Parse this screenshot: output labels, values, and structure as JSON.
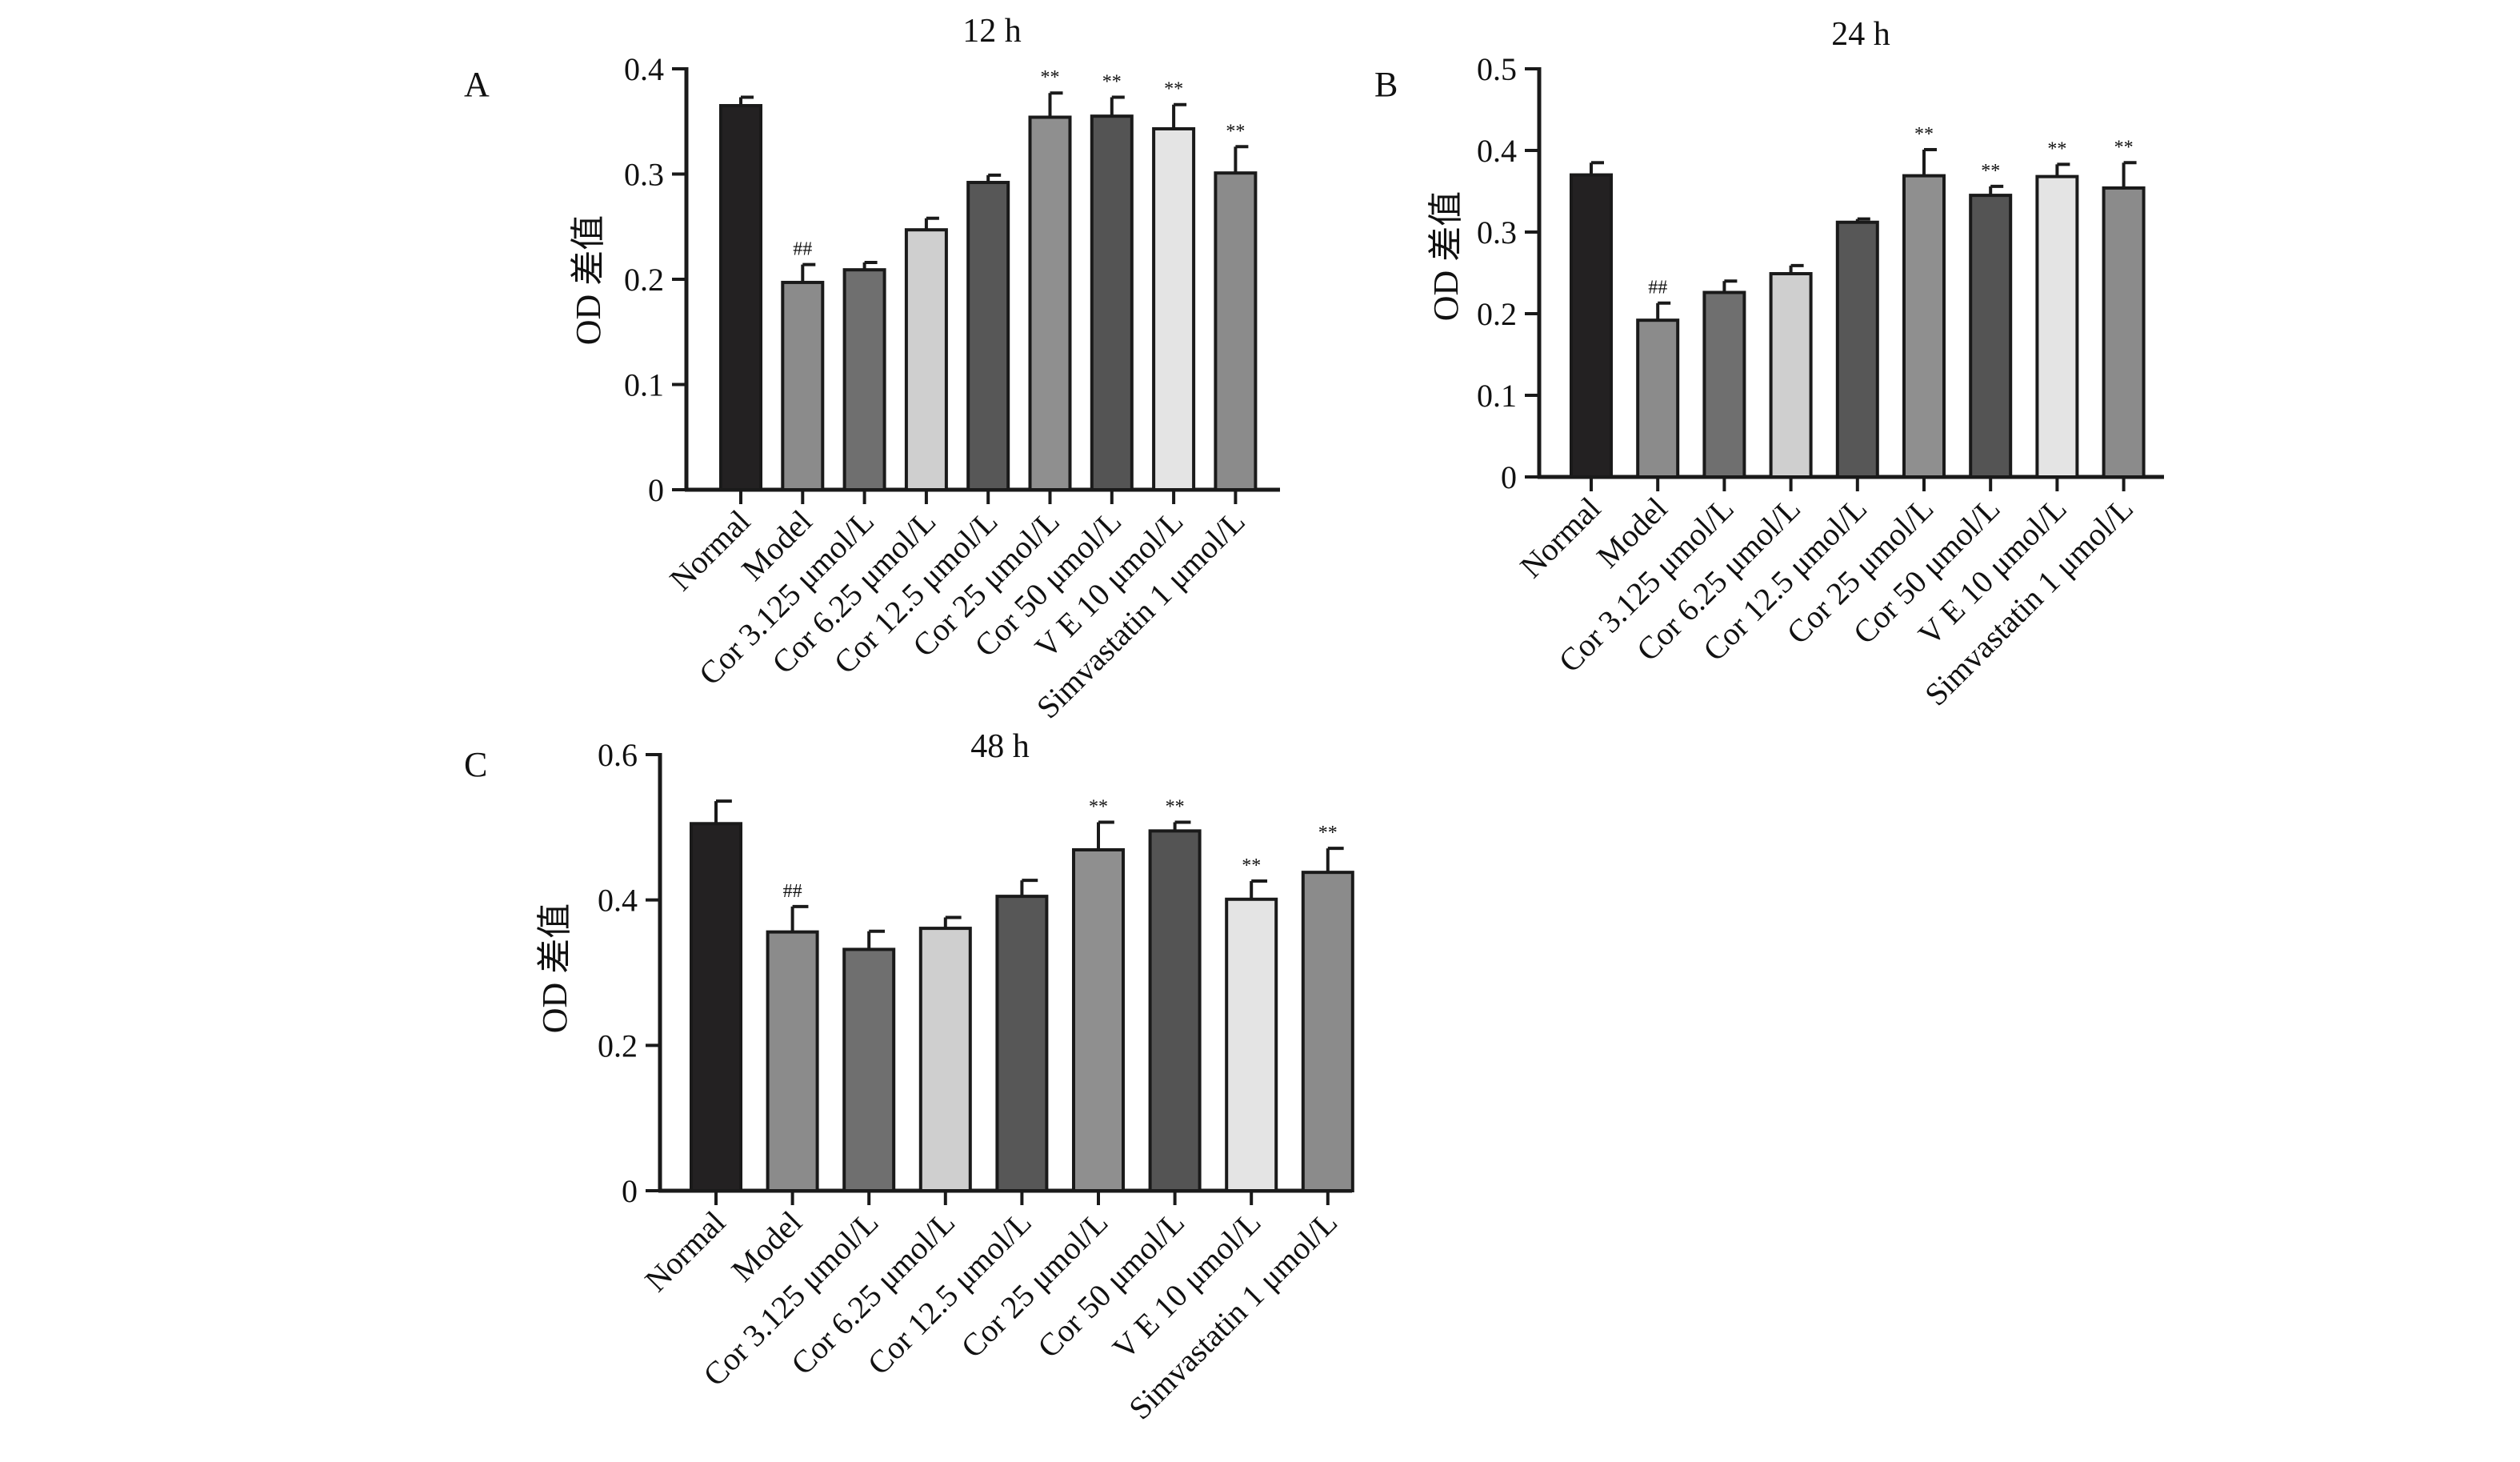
{
  "figure": {
    "bar_colors": [
      "#232122",
      "#8b8b8b",
      "#6f6f6f",
      "#cfcfcf",
      "#575757",
      "#8f8f8f",
      "#545454",
      "#e4e4e4",
      "#8b8b8b"
    ]
  },
  "chart_data": [
    {
      "type": "bar",
      "panel": "A",
      "title": "12 h",
      "ylabel": "OD 差值",
      "xlabel": "",
      "ylim": [
        0,
        0.4
      ],
      "yticks": [
        0,
        0.1,
        0.2,
        0.3,
        0.4
      ],
      "ytick_labels": [
        "0",
        "0.1",
        "0.2",
        "0.3",
        "0.4"
      ],
      "categories": [
        "Normal",
        "Model",
        "Cor 3.125 μmol/L",
        "Cor 6.25 μmol/L",
        "Cor 12.5 μmol/L",
        "Cor 25 μmol/L",
        "Cor 50 μmol/L",
        "V E 10 μmol/L",
        "Simvastatin 1 μmol/L"
      ],
      "values": [
        0.365,
        0.197,
        0.209,
        0.247,
        0.292,
        0.354,
        0.355,
        0.343,
        0.301
      ],
      "errors": [
        0.008,
        0.017,
        0.007,
        0.011,
        0.007,
        0.023,
        0.018,
        0.023,
        0.025
      ],
      "significance": [
        "",
        "##",
        "",
        "",
        "",
        "**",
        "**",
        "**",
        "**"
      ]
    },
    {
      "type": "bar",
      "panel": "B",
      "title": "24 h",
      "ylabel": "OD 差值",
      "xlabel": "",
      "ylim": [
        0,
        0.5
      ],
      "yticks": [
        0,
        0.1,
        0.2,
        0.3,
        0.4,
        0.5
      ],
      "ytick_labels": [
        "0",
        "0.1",
        "0.2",
        "0.3",
        "0.4",
        "0.5"
      ],
      "categories": [
        "Normal",
        "Model",
        "Cor 3.125 μmol/L",
        "Cor 6.25 μmol/L",
        "Cor 12.5 μmol/L",
        "Cor 25 μmol/L",
        "Cor 50 μmol/L",
        "V E 10 μmol/L",
        "Simvastatin 1 μmol/L"
      ],
      "values": [
        0.37,
        0.192,
        0.226,
        0.249,
        0.312,
        0.369,
        0.345,
        0.368,
        0.354
      ],
      "errors": [
        0.015,
        0.021,
        0.014,
        0.01,
        0.004,
        0.032,
        0.011,
        0.015,
        0.031
      ],
      "significance": [
        "",
        "##",
        "",
        "",
        "",
        "**",
        "**",
        "**",
        "**"
      ]
    },
    {
      "type": "bar",
      "panel": "C",
      "title": "48 h",
      "ylabel": "OD 差值",
      "xlabel": "",
      "ylim": [
        0,
        0.6
      ],
      "yticks": [
        0,
        0.2,
        0.4,
        0.6
      ],
      "ytick_labels": [
        "0",
        "0.2",
        "0.4",
        "0.6"
      ],
      "categories": [
        "Normal",
        "Model",
        "Cor 3.125 μmol/L",
        "Cor 6.25 μmol/L",
        "Cor 12.5 μmol/L",
        "Cor 25 μmol/L",
        "Cor 50 μmol/L",
        "V E 10 μmol/L",
        "Simvastatin 1 μmol/L"
      ],
      "values": [
        0.505,
        0.356,
        0.332,
        0.361,
        0.405,
        0.469,
        0.495,
        0.401,
        0.438
      ],
      "errors": [
        0.031,
        0.035,
        0.025,
        0.015,
        0.022,
        0.038,
        0.012,
        0.025,
        0.033
      ],
      "significance": [
        "",
        "##",
        "",
        "",
        "",
        "**",
        "**",
        "**",
        "**"
      ]
    }
  ]
}
